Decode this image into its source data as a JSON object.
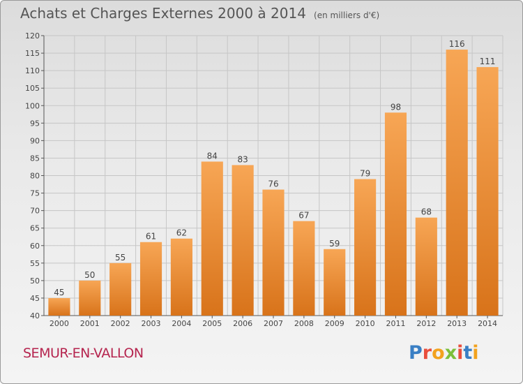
{
  "header": {
    "title": "Achats et Charges Externes 2000 à 2014",
    "subtitle": "(en milliers d'€)"
  },
  "footer": {
    "commune": "SEMUR-EN-VALLON",
    "logo_text": "Proxiti",
    "logo_colors": [
      "#3a7fc4",
      "#e94e3c",
      "#f2a21e",
      "#7cbf3a",
      "#e94e3c",
      "#3a7fc4",
      "#f2a21e"
    ]
  },
  "colors": {
    "bar_top": "#f7a655",
    "bar_bottom": "#d8731a",
    "grid": "#c6c6c6",
    "axis_text": "#444444"
  },
  "chart_data": {
    "type": "bar",
    "title": "Achats et Charges Externes 2000 à 2014",
    "subtitle": "(en milliers d'€)",
    "categories": [
      "2000",
      "2001",
      "2002",
      "2003",
      "2004",
      "2005",
      "2006",
      "2007",
      "2008",
      "2009",
      "2010",
      "2011",
      "2012",
      "2013",
      "2014"
    ],
    "values": [
      45,
      50,
      55,
      61,
      62,
      84,
      83,
      76,
      67,
      59,
      79,
      98,
      68,
      116,
      111
    ],
    "ylim": [
      40,
      120
    ],
    "ytick_step": 5,
    "grid": true
  }
}
